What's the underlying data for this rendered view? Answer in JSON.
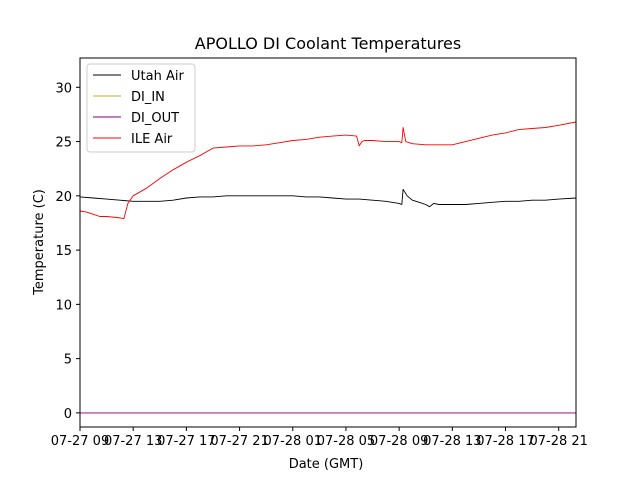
{
  "chart_data": {
    "type": "line",
    "title": "APOLLO DI Coolant Temperatures",
    "xlabel": "Date (GMT)",
    "ylabel": "Temperature (C)",
    "xlim": [
      9.0,
      46.3
    ],
    "ylim": [
      -1.3,
      32.7
    ],
    "yticks": [
      0,
      5,
      10,
      15,
      20,
      25,
      30
    ],
    "xticks": [
      {
        "x": 9,
        "label": "07-27 09"
      },
      {
        "x": 13,
        "label": "07-27 13"
      },
      {
        "x": 17,
        "label": "07-27 17"
      },
      {
        "x": 21,
        "label": "07-27 21"
      },
      {
        "x": 25,
        "label": "07-28 01"
      },
      {
        "x": 29,
        "label": "07-28 05"
      },
      {
        "x": 33,
        "label": "07-28 09"
      },
      {
        "x": 37,
        "label": "07-28 13"
      },
      {
        "x": 41,
        "label": "07-28 17"
      },
      {
        "x": 45,
        "label": "07-28 21"
      }
    ],
    "legend_position": "top-left",
    "series": [
      {
        "name": "Utah Air",
        "color": "#000000",
        "x": [
          9.0,
          10.0,
          11.0,
          12.0,
          13.0,
          14.0,
          15.0,
          16.0,
          17.0,
          18.0,
          19.0,
          20.0,
          21.0,
          22.0,
          23.0,
          24.0,
          25.0,
          26.0,
          27.0,
          28.0,
          29.0,
          30.0,
          31.0,
          32.0,
          33.0,
          33.2,
          33.3,
          33.6,
          34.0,
          34.5,
          35.0,
          35.3,
          35.6,
          36.0,
          37.0,
          38.0,
          39.0,
          40.0,
          41.0,
          42.0,
          43.0,
          44.0,
          45.0,
          46.3
        ],
        "y": [
          19.9,
          19.8,
          19.7,
          19.6,
          19.5,
          19.5,
          19.5,
          19.6,
          19.8,
          19.9,
          19.9,
          20.0,
          20.0,
          20.0,
          20.0,
          20.0,
          20.0,
          19.9,
          19.9,
          19.8,
          19.7,
          19.7,
          19.6,
          19.5,
          19.3,
          19.2,
          20.6,
          20.0,
          19.6,
          19.4,
          19.2,
          19.0,
          19.3,
          19.2,
          19.2,
          19.2,
          19.3,
          19.4,
          19.5,
          19.5,
          19.6,
          19.6,
          19.7,
          19.8
        ]
      },
      {
        "name": "DI_IN",
        "color": "#d4a92a",
        "x": [
          9.0,
          46.3
        ],
        "y": [
          0,
          0
        ]
      },
      {
        "name": "DI_OUT",
        "color": "#800080",
        "x": [
          9.0,
          46.3
        ],
        "y": [
          0,
          0
        ]
      },
      {
        "name": "ILE Air",
        "color": "#ff0000",
        "x": [
          9.0,
          9.5,
          10.0,
          10.5,
          11.0,
          11.8,
          12.3,
          12.6,
          13.0,
          14.0,
          15.0,
          16.0,
          17.0,
          18.0,
          19.0,
          20.0,
          21.0,
          22.0,
          23.0,
          24.0,
          25.0,
          26.0,
          27.0,
          28.0,
          29.0,
          29.8,
          30.0,
          30.2,
          30.4,
          31.0,
          32.0,
          33.0,
          33.2,
          33.3,
          33.5,
          34.0,
          35.0,
          36.0,
          37.0,
          38.0,
          39.0,
          40.0,
          41.0,
          42.0,
          43.0,
          44.0,
          45.0,
          46.3
        ],
        "y": [
          18.6,
          18.5,
          18.3,
          18.1,
          18.1,
          18.0,
          17.9,
          19.3,
          20.0,
          20.7,
          21.6,
          22.4,
          23.1,
          23.7,
          24.4,
          24.5,
          24.6,
          24.6,
          24.7,
          24.9,
          25.1,
          25.2,
          25.4,
          25.5,
          25.6,
          25.5,
          24.6,
          25.0,
          25.1,
          25.1,
          25.0,
          25.0,
          24.9,
          26.3,
          25.0,
          24.8,
          24.7,
          24.7,
          24.7,
          25.0,
          25.3,
          25.6,
          25.8,
          26.1,
          26.2,
          26.3,
          26.5,
          26.8
        ]
      }
    ]
  }
}
